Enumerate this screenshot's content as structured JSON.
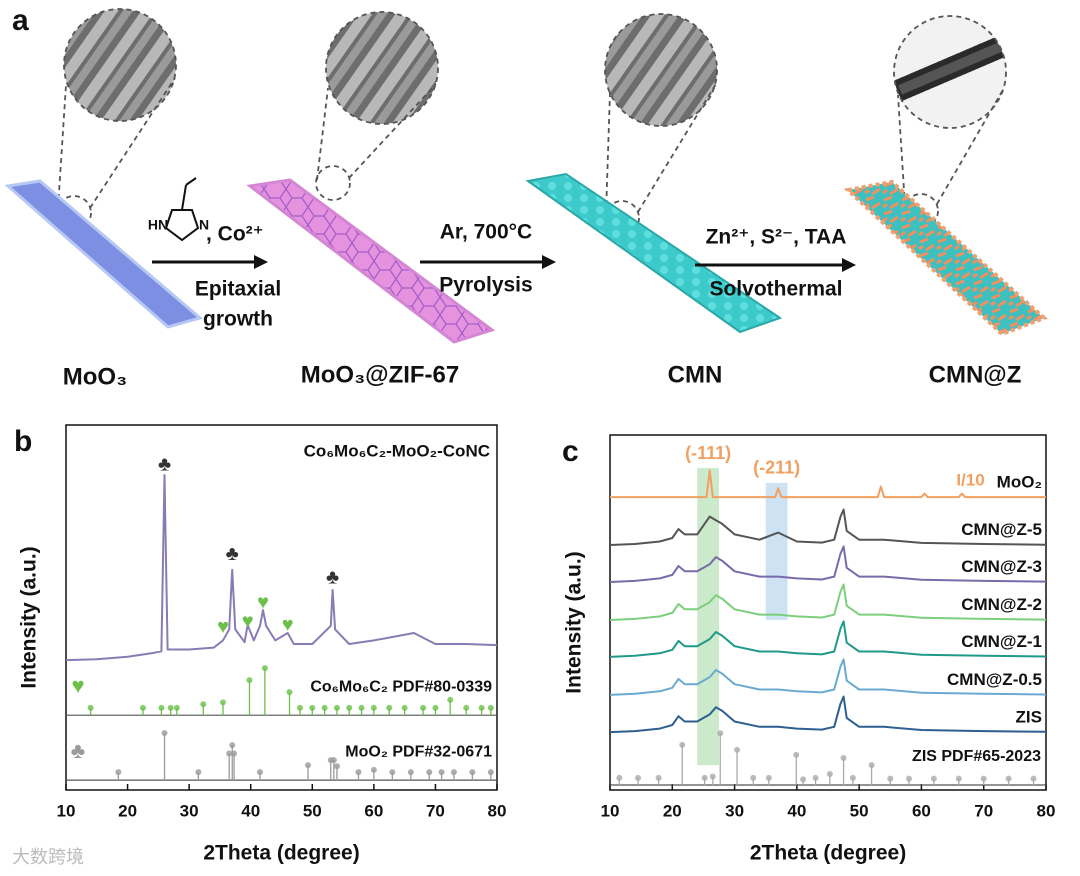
{
  "schematic": {
    "panel": "a",
    "steps": [
      {
        "label": "MoO₃"
      },
      {
        "label": "MoO₃@ZIF-67"
      },
      {
        "label": "CMN"
      },
      {
        "label": "CMN@Z"
      }
    ],
    "molecule": {
      "nh": "HN",
      "n": "N"
    },
    "arrows": [
      {
        "above": ", Co²⁺",
        "below": [
          "Epitaxial",
          "growth"
        ]
      },
      {
        "above": "Ar, 700°C",
        "below": [
          "Pyrolysis"
        ]
      },
      {
        "above": "Zn²⁺, S²⁻, TAA",
        "below": [
          "Solvothermal"
        ]
      }
    ]
  },
  "watermark": "大数跨境",
  "chart_data": [
    {
      "type": "line",
      "panel": "b",
      "xlabel": "2Theta (degree)",
      "ylabel": "Intensity (a.u.)",
      "xlim": [
        10,
        80
      ],
      "xticks": [
        10,
        20,
        30,
        40,
        50,
        60,
        70,
        80
      ],
      "ylim": [
        0,
        100
      ],
      "series": [
        {
          "name": "Co₆Mo₆C₂-MoO₂-CoNC",
          "color": "#8a7bb5",
          "x": [
            10,
            15,
            20,
            24,
            25.5,
            26,
            26.5,
            30,
            34,
            35.5,
            36.5,
            37,
            37.5,
            39,
            39.5,
            40.5,
            41.5,
            42,
            42.5,
            44,
            46,
            47,
            50,
            53,
            53.3,
            53.7,
            56,
            60,
            66.5,
            70,
            75,
            80
          ],
          "values": [
            35.6,
            35.8,
            36.5,
            37.5,
            38,
            86.3,
            38.5,
            38.5,
            39,
            41,
            44,
            60.3,
            44,
            40.5,
            45.2,
            41,
            45,
            49.3,
            45,
            41,
            43,
            40,
            40,
            45,
            54.8,
            44,
            40,
            41,
            43,
            40,
            40,
            39.7
          ]
        }
      ],
      "markers": [
        {
          "symbol": "♣",
          "color": "#333333",
          "x": [
            26,
            37,
            53.3
          ],
          "y": [
            89,
            64.4,
            58
          ]
        },
        {
          "symbol": "♥",
          "color": "#6cc04a",
          "x": [
            35.5,
            39.5,
            42,
            46
          ],
          "y": [
            44.4,
            46,
            51.2,
            45
          ]
        }
      ],
      "references": [
        {
          "name": "Co₆Mo₆C₂ PDF#80-0339",
          "symbol": "♥",
          "color": "#6cc04a",
          "baseline": 20.5,
          "x": [
            14,
            22.5,
            25.5,
            27,
            28,
            32.3,
            35.5,
            39.8,
            42.3,
            46.3,
            48,
            50,
            52,
            54,
            56,
            58,
            60,
            62.5,
            65,
            68,
            70,
            72.4,
            75,
            77.5,
            79
          ],
          "values": [
            22.5,
            22.5,
            22.5,
            22.5,
            22.5,
            23.5,
            24,
            30.1,
            33.4,
            26.8,
            22.5,
            22.5,
            22.5,
            22.5,
            22.5,
            22.5,
            22.5,
            22.5,
            22.5,
            22.5,
            22.5,
            24.7,
            22.5,
            22.5,
            22.5
          ]
        },
        {
          "name": "MoO₂ PDF#32-0671",
          "symbol": "♣",
          "color": "#9a9a9a",
          "baseline": 2.7,
          "x": [
            18.5,
            26,
            31.5,
            36.5,
            37,
            37.3,
            41.5,
            49.3,
            53,
            53.5,
            54,
            57.5,
            60,
            63,
            66,
            69,
            71,
            73,
            76,
            79
          ],
          "values": [
            4.9,
            15.6,
            4.9,
            10,
            12.3,
            10,
            4.9,
            6.8,
            8.2,
            8.2,
            6.5,
            4.9,
            5.5,
            4.9,
            4.9,
            4.9,
            4.9,
            4.9,
            4.9,
            4.9
          ]
        }
      ]
    },
    {
      "type": "line",
      "panel": "c",
      "xlabel": "2Theta (degree)",
      "ylabel": "Intensity (a.u.)",
      "xlim": [
        10,
        80
      ],
      "xticks": [
        10,
        20,
        30,
        40,
        50,
        60,
        70,
        80
      ],
      "ylim": [
        0,
        100
      ],
      "x": [
        10,
        14,
        18,
        20,
        21,
        22,
        24,
        26,
        27,
        28,
        30,
        34,
        37,
        40,
        44,
        46,
        47,
        47.5,
        48,
        50,
        54,
        60,
        70,
        80
      ],
      "highlights": [
        {
          "label": "(-111)",
          "color": "#b5dfb5",
          "xlim": [
            24,
            27.5
          ],
          "ylim": [
            7,
            90.7
          ]
        },
        {
          "label": "(-211)",
          "color": "#b8d6ee",
          "xlim": [
            35,
            38.5
          ],
          "ylim": [
            47.9,
            86.5
          ]
        }
      ],
      "series": [
        {
          "name": "MoO₂",
          "scale_label": "I/10",
          "color": "#f0a060",
          "x": [
            10,
            25.5,
            26,
            26.5,
            36.5,
            37,
            37.5,
            53,
            53.5,
            54,
            60,
            60.5,
            61,
            66,
            66.5,
            67,
            80
          ],
          "values": [
            82.5,
            82.5,
            90,
            82.5,
            82.5,
            85,
            82.5,
            82.5,
            85.5,
            82.5,
            82.5,
            83.5,
            82.5,
            82.5,
            83.5,
            82.5,
            82.5
          ]
        },
        {
          "name": "CMN@Z-5",
          "color": "#555555",
          "values": [
            69,
            69.3,
            70,
            71,
            73.5,
            72,
            72,
            77,
            76,
            75,
            72,
            70.5,
            72.5,
            70,
            69.7,
            70.5,
            77,
            79,
            73,
            70.5,
            70.5,
            69.6,
            69.3,
            69.1
          ]
        },
        {
          "name": "CMN@Z-3",
          "color": "#7a6aaa",
          "values": [
            58.6,
            58.9,
            59.6,
            60.6,
            63.1,
            61.6,
            61.6,
            63.6,
            65.6,
            64.6,
            61.6,
            60.1,
            60.1,
            59.6,
            59.3,
            60.1,
            66.6,
            68.6,
            62.6,
            60.1,
            60.1,
            59.2,
            58.9,
            58.7
          ]
        },
        {
          "name": "CMN@Z-2",
          "color": "#7ccf7c",
          "values": [
            47.9,
            48.2,
            48.9,
            49.9,
            52.4,
            50.9,
            50.9,
            52.9,
            54.9,
            53.9,
            50.9,
            49.4,
            49.4,
            48.9,
            48.6,
            49.4,
            55.9,
            57.9,
            51.9,
            49.4,
            49.4,
            48.5,
            48.2,
            48
          ]
        },
        {
          "name": "CMN@Z-1",
          "color": "#1f9a8a",
          "values": [
            37.5,
            37.8,
            38.5,
            39.5,
            42,
            40.5,
            40.5,
            42.5,
            44.5,
            43.5,
            40.5,
            39,
            39,
            38.5,
            38.2,
            39,
            45.5,
            47.5,
            41.5,
            39,
            39,
            38.1,
            37.8,
            37.6
          ]
        },
        {
          "name": "CMN@Z-0.5",
          "color": "#6aaad0",
          "values": [
            26.8,
            27.1,
            27.8,
            28.8,
            31.3,
            29.8,
            29.8,
            31.8,
            33.8,
            32.8,
            29.8,
            28.3,
            28.3,
            27.8,
            27.5,
            28.3,
            34.8,
            36.8,
            30.8,
            28.3,
            28.3,
            27.4,
            27.1,
            26.9
          ]
        },
        {
          "name": "ZIS",
          "color": "#2d5f8f",
          "values": [
            16.3,
            16.6,
            17.3,
            18.3,
            20.8,
            19.3,
            19.3,
            21.3,
            23.3,
            22.3,
            19.3,
            17.8,
            17.8,
            17.3,
            17,
            17.8,
            24.3,
            26.3,
            20.3,
            17.8,
            17.8,
            16.9,
            16.6,
            16.4
          ]
        }
      ],
      "references": [
        {
          "name": "ZIS PDF#65-2023",
          "color": "#aaaaaa",
          "baseline": 1.4,
          "x": [
            11.5,
            14.5,
            17.8,
            21.6,
            25.2,
            26.5,
            27.7,
            30.4,
            33,
            35.5,
            39.9,
            41,
            43,
            45.3,
            47.5,
            49,
            52,
            55,
            58,
            62,
            66,
            70,
            74,
            78
          ],
          "values": [
            3.4,
            3.4,
            3.4,
            12.7,
            3.4,
            3.8,
            16,
            11.3,
            3.4,
            3.4,
            9.9,
            3,
            3.4,
            4.5,
            9,
            3.4,
            7,
            3.2,
            3.2,
            3.2,
            3.2,
            3.2,
            3.2,
            3.2
          ]
        }
      ]
    }
  ]
}
